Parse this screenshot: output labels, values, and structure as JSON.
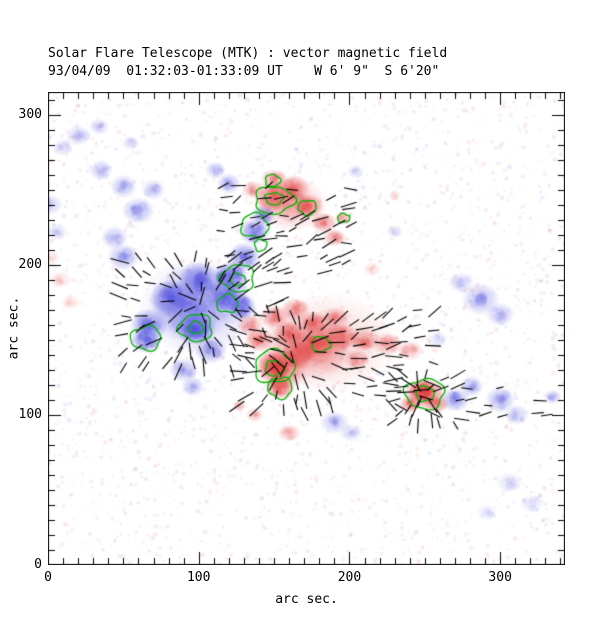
{
  "chart_data": {
    "type": "heatmap",
    "title": "Solar Flare Telescope (MTK) : vector magnetic field",
    "subtitle": "93/04/09  01:32:03-01:33:09 UT    W 6' 9\"  S 6'20\"",
    "xlabel": "arc sec.",
    "ylabel": "arc sec.",
    "xlim": [
      0,
      343
    ],
    "ylim": [
      0,
      315
    ],
    "xticks": [
      0,
      100,
      200,
      300
    ],
    "yticks": [
      0,
      100,
      200,
      300
    ],
    "minor_tick_step": 10,
    "seed": 7,
    "colors": {
      "positive": "#e03c3c",
      "negative": "#4646dc",
      "contour": "#00b400",
      "vector": "#000000",
      "axis": "#000000"
    },
    "speckle": {
      "count": 2600,
      "min_alpha": 0.03,
      "max_alpha": 0.11,
      "min_r": 0.8,
      "max_r": 2.4
    },
    "blobs": [
      [
        100,
        172,
        40,
        34,
        "n",
        0.2
      ],
      [
        95,
        170,
        26,
        22,
        "n",
        0.3
      ],
      [
        82,
        177,
        15,
        13,
        "n",
        0.5
      ],
      [
        100,
        190,
        14,
        12,
        "n",
        0.55
      ],
      [
        118,
        180,
        14,
        12,
        "n",
        0.5
      ],
      [
        98,
        157,
        13,
        11,
        "n",
        0.6
      ],
      [
        67,
        160,
        13,
        11,
        "n",
        0.45
      ],
      [
        65,
        150,
        10,
        9,
        "n",
        0.55
      ],
      [
        121,
        192,
        12,
        10,
        "n",
        0.6
      ],
      [
        130,
        205,
        11,
        10,
        "n",
        0.45
      ],
      [
        137,
        222,
        10,
        9,
        "n",
        0.5
      ],
      [
        143,
        233,
        8,
        7,
        "n",
        0.45
      ],
      [
        128,
        172,
        10,
        9,
        "n",
        0.55
      ],
      [
        108,
        143,
        11,
        9,
        "n",
        0.35
      ],
      [
        90,
        130,
        10,
        8,
        "n",
        0.3
      ],
      [
        96,
        119,
        8,
        7,
        "n",
        0.25
      ],
      [
        50,
        205,
        11,
        9,
        "n",
        0.28
      ],
      [
        44,
        218,
        9,
        8,
        "n",
        0.24
      ],
      [
        60,
        236,
        11,
        9,
        "n",
        0.28
      ],
      [
        50,
        252,
        9,
        8,
        "n",
        0.26
      ],
      [
        35,
        263,
        8,
        7,
        "n",
        0.22
      ],
      [
        70,
        250,
        8,
        7,
        "n",
        0.22
      ],
      [
        20,
        286,
        9,
        7,
        "n",
        0.18
      ],
      [
        34,
        292,
        7,
        6,
        "n",
        0.16
      ],
      [
        10,
        278,
        7,
        6,
        "n",
        0.16
      ],
      [
        55,
        281,
        6,
        5,
        "n",
        0.14
      ],
      [
        120,
        254,
        8,
        7,
        "n",
        0.28
      ],
      [
        111,
        263,
        7,
        6,
        "n",
        0.22
      ],
      [
        204,
        262,
        6,
        5,
        "n",
        0.13
      ],
      [
        287,
        177,
        13,
        11,
        "n",
        0.26
      ],
      [
        300,
        167,
        10,
        8,
        "n",
        0.22
      ],
      [
        274,
        188,
        9,
        7,
        "n",
        0.18
      ],
      [
        270,
        110,
        10,
        8,
        "n",
        0.35
      ],
      [
        281,
        119,
        8,
        7,
        "n",
        0.28
      ],
      [
        300,
        110,
        10,
        9,
        "n",
        0.3
      ],
      [
        311,
        100,
        8,
        7,
        "n",
        0.22
      ],
      [
        335,
        112,
        6,
        5,
        "n",
        0.26
      ],
      [
        190,
        95,
        10,
        8,
        "n",
        0.22
      ],
      [
        201,
        88,
        8,
        6,
        "n",
        0.16
      ],
      [
        306,
        55,
        9,
        7,
        "n",
        0.13
      ],
      [
        321,
        41,
        8,
        6,
        "n",
        0.11
      ],
      [
        291,
        35,
        7,
        6,
        "n",
        0.1
      ],
      [
        2,
        240,
        8,
        7,
        "n",
        0.18
      ],
      [
        6,
        222,
        7,
        6,
        "n",
        0.15
      ],
      [
        230,
        222,
        6,
        5,
        "n",
        0.13
      ],
      [
        258,
        150,
        7,
        6,
        "n",
        0.12
      ],
      [
        162,
        240,
        24,
        18,
        "p",
        0.25
      ],
      [
        150,
        245,
        14,
        11,
        "p",
        0.5
      ],
      [
        163,
        251,
        11,
        9,
        "p",
        0.45
      ],
      [
        173,
        239,
        10,
        8,
        "p",
        0.5
      ],
      [
        183,
        228,
        9,
        7,
        "p",
        0.4
      ],
      [
        190,
        218,
        8,
        6,
        "p",
        0.35
      ],
      [
        150,
        257,
        9,
        7,
        "p",
        0.35
      ],
      [
        136,
        250,
        8,
        6,
        "p",
        0.3
      ],
      [
        196,
        231,
        6,
        5,
        "p",
        0.28
      ],
      [
        185,
        148,
        48,
        34,
        "p",
        0.16
      ],
      [
        172,
        145,
        32,
        24,
        "p",
        0.26
      ],
      [
        155,
        130,
        17,
        14,
        "p",
        0.5
      ],
      [
        150,
        133,
        12,
        10,
        "p",
        0.6
      ],
      [
        154,
        118,
        10,
        8,
        "p",
        0.55
      ],
      [
        166,
        140,
        12,
        10,
        "p",
        0.5
      ],
      [
        180,
        147,
        11,
        9,
        "p",
        0.45
      ],
      [
        195,
        152,
        12,
        9,
        "p",
        0.4
      ],
      [
        210,
        150,
        11,
        8,
        "p",
        0.35
      ],
      [
        225,
        147,
        10,
        8,
        "p",
        0.3
      ],
      [
        240,
        143,
        9,
        7,
        "p",
        0.26
      ],
      [
        140,
        150,
        10,
        8,
        "p",
        0.4
      ],
      [
        134,
        160,
        9,
        7,
        "p",
        0.35
      ],
      [
        150,
        165,
        10,
        8,
        "p",
        0.4
      ],
      [
        164,
        170,
        10,
        8,
        "p",
        0.36
      ],
      [
        176,
        161,
        10,
        8,
        "p",
        0.4
      ],
      [
        160,
        154,
        11,
        9,
        "p",
        0.45
      ],
      [
        191,
        165,
        9,
        7,
        "p",
        0.3
      ],
      [
        205,
        137,
        9,
        7,
        "p",
        0.3
      ],
      [
        250,
        114,
        14,
        11,
        "p",
        0.55
      ],
      [
        248,
        116,
        9,
        7,
        "p",
        0.65
      ],
      [
        258,
        107,
        8,
        6,
        "p",
        0.45
      ],
      [
        240,
        107,
        7,
        6,
        "p",
        0.45
      ],
      [
        160,
        88,
        8,
        6,
        "p",
        0.26
      ],
      [
        137,
        100,
        6,
        5,
        "p",
        0.26
      ],
      [
        127,
        106,
        5,
        4,
        "p",
        0.22
      ],
      [
        8,
        190,
        8,
        6,
        "p",
        0.13
      ],
      [
        15,
        175,
        7,
        5,
        "p",
        0.11
      ],
      [
        2,
        205,
        6,
        5,
        "p",
        0.11
      ],
      [
        215,
        197,
        6,
        5,
        "p",
        0.14
      ],
      [
        230,
        246,
        4,
        4,
        "p",
        0.16
      ]
    ],
    "contours": [
      [
        150,
        243,
        13,
        9
      ],
      [
        150,
        244,
        6,
        4
      ],
      [
        172,
        238,
        6,
        5
      ],
      [
        149,
        256,
        5,
        4
      ],
      [
        137,
        226,
        9,
        8
      ],
      [
        141,
        213,
        4,
        4
      ],
      [
        126,
        191,
        11,
        9
      ],
      [
        126,
        190,
        5,
        4
      ],
      [
        119,
        174,
        7,
        6
      ],
      [
        98,
        158,
        11,
        9
      ],
      [
        98,
        158,
        5,
        4
      ],
      [
        65,
        151,
        10,
        8
      ],
      [
        150,
        132,
        13,
        11
      ],
      [
        150,
        131,
        6,
        5
      ],
      [
        154,
        118,
        8,
        7
      ],
      [
        181,
        147,
        6,
        5
      ],
      [
        250,
        114,
        13,
        10
      ],
      [
        250,
        114,
        6,
        5
      ],
      [
        196,
        231,
        4,
        3
      ]
    ],
    "vector_groups": [
      {
        "x0": 50,
        "x1": 158,
        "y0": 132,
        "y1": 212,
        "step": 9,
        "mode": "radial",
        "cx": 100,
        "cy": 172,
        "angle": 0,
        "len": 10,
        "jitter": 22,
        "density": 0.8
      },
      {
        "x0": 118,
        "x1": 200,
        "y0": 198,
        "y1": 256,
        "step": 9,
        "mode": "fixed",
        "cx": 0,
        "cy": 0,
        "angle": 15,
        "len": 9,
        "jitter": 30,
        "density": 0.75
      },
      {
        "x0": 128,
        "x1": 262,
        "y0": 104,
        "y1": 168,
        "step": 9,
        "mode": "radial",
        "cx": 163,
        "cy": 136,
        "angle": 0,
        "len": 10,
        "jitter": 26,
        "density": 0.8
      },
      {
        "x0": 230,
        "x1": 270,
        "y0": 95,
        "y1": 134,
        "step": 8,
        "mode": "radial",
        "cx": 249,
        "cy": 114,
        "angle": 0,
        "len": 9,
        "jitter": 18,
        "density": 0.9
      },
      {
        "x0": 272,
        "x1": 300,
        "y0": 100,
        "y1": 122,
        "step": 9,
        "mode": "fixed",
        "cx": 0,
        "cy": 0,
        "angle": 5,
        "len": 8,
        "jitter": 15,
        "density": 0.6
      },
      {
        "x0": 325,
        "x1": 336,
        "y0": 98,
        "y1": 108,
        "step": 9,
        "mode": "fixed",
        "cx": 0,
        "cy": 0,
        "angle": 0,
        "len": 8,
        "jitter": 10,
        "density": 0.9
      }
    ]
  }
}
